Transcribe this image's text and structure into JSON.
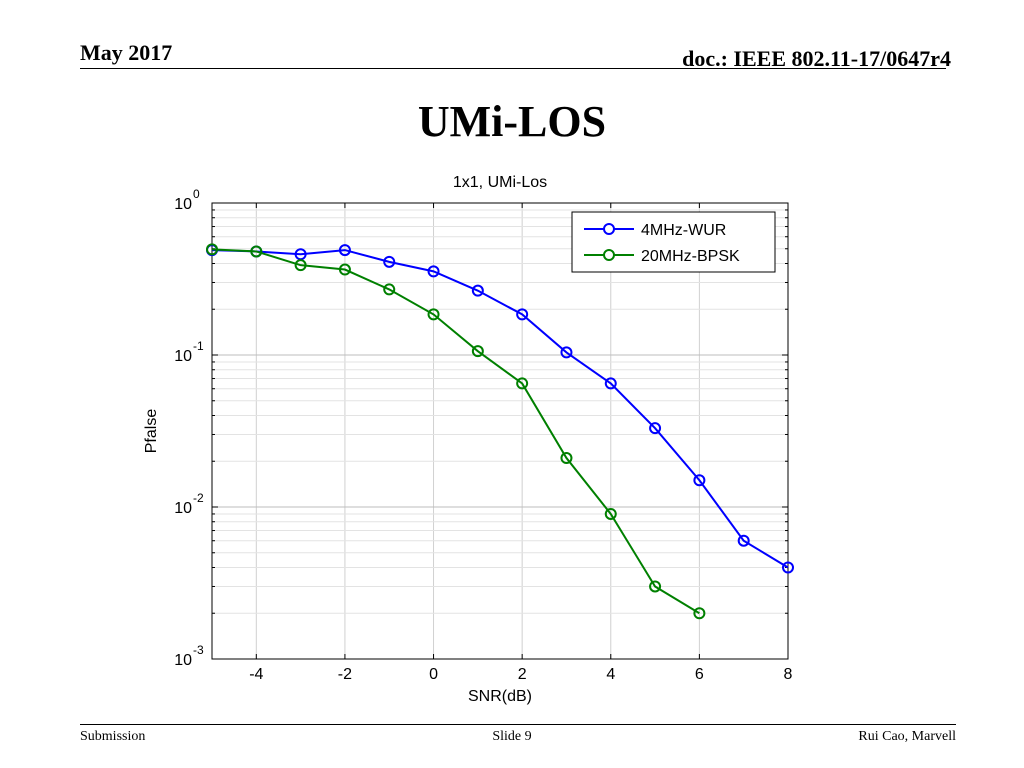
{
  "header": {
    "date": "May 2017",
    "doc": "doc.: IEEE 802.11-17/0647r4"
  },
  "slide_title": "UMi-LOS",
  "footer": {
    "left": "Submission",
    "center": "Slide 9",
    "right": "Rui Cao, Marvell"
  },
  "chart_data": {
    "type": "line",
    "title": "1x1, UMi-Los",
    "xlabel": "SNR(dB)",
    "ylabel": "Pfalse",
    "xlim": [
      -5,
      8
    ],
    "ylim": [
      0.001,
      1
    ],
    "yscale": "log",
    "grid": true,
    "legend_position": "top-right",
    "x_ticks": [
      -4,
      -2,
      0,
      2,
      4,
      6,
      8
    ],
    "y_ticks": [
      {
        "value": 1,
        "base": "10",
        "exp": "0"
      },
      {
        "value": 0.1,
        "base": "10",
        "exp": "-1"
      },
      {
        "value": 0.01,
        "base": "10",
        "exp": "-2"
      },
      {
        "value": 0.001,
        "base": "10",
        "exp": "-3"
      }
    ],
    "series": [
      {
        "name": "4MHz-WUR",
        "color": "#0000ff",
        "marker": "circle",
        "x": [
          -5,
          -4,
          -3,
          -2,
          -1,
          0,
          1,
          2,
          3,
          4,
          5,
          6,
          7,
          8
        ],
        "values": [
          0.49,
          0.48,
          0.46,
          0.49,
          0.41,
          0.355,
          0.265,
          0.185,
          0.104,
          0.065,
          0.033,
          0.015,
          0.006,
          0.004
        ]
      },
      {
        "name": "20MHz-BPSK",
        "color": "#008000",
        "marker": "circle",
        "x": [
          -5,
          -4,
          -3,
          -2,
          -1,
          0,
          1,
          2,
          3,
          4,
          5,
          6
        ],
        "values": [
          0.495,
          0.48,
          0.39,
          0.365,
          0.27,
          0.185,
          0.106,
          0.065,
          0.021,
          0.009,
          0.003,
          0.002
        ]
      }
    ]
  }
}
